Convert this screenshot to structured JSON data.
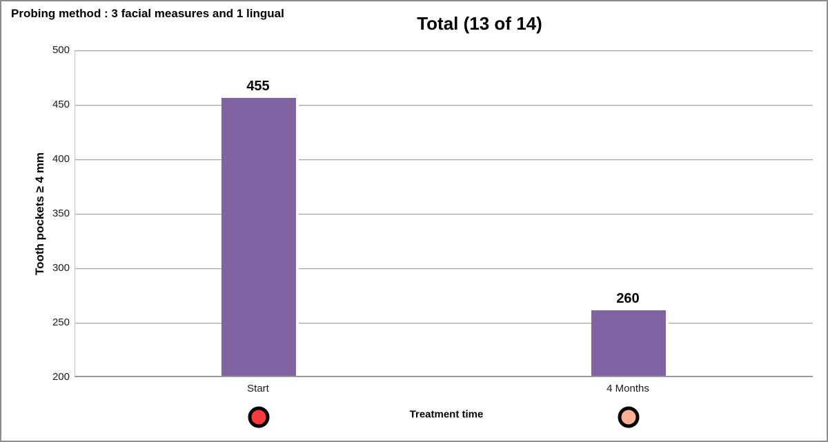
{
  "note": "Probing method : 3 facial measures and 1 lingual",
  "chart_data": {
    "type": "bar",
    "title": "Total (13 of 14)",
    "categories": [
      "Start",
      "4 Months"
    ],
    "values": [
      455,
      260
    ],
    "xlabel": "Treatment time",
    "ylabel": "Tooth pockets ≥ 4 mm",
    "ylim": [
      200,
      500
    ],
    "yticks": [
      500,
      450,
      400,
      350,
      300,
      250,
      200
    ],
    "grid": true,
    "legend_position": "none",
    "bar_color": "#8064A2",
    "gridline_color": "#a6a6a6",
    "category_markers": [
      {
        "category": "Start",
        "shape": "circle",
        "fill": "#FA3B3B",
        "border": "#000000"
      },
      {
        "category": "4 Months",
        "shape": "circle",
        "fill": "#FBB096",
        "border": "#000000"
      }
    ]
  }
}
